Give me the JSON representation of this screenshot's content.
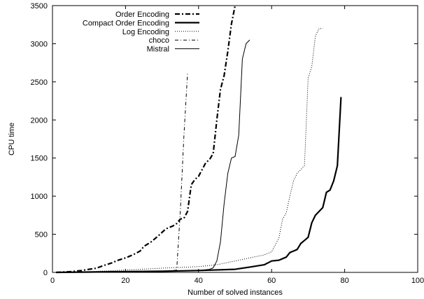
{
  "chart_data": {
    "type": "line",
    "title": "",
    "xlabel": "Number of solved instances",
    "ylabel": "CPU time",
    "xlim": [
      0,
      100
    ],
    "ylim": [
      0,
      3500
    ],
    "xticks": [
      0,
      20,
      40,
      60,
      80,
      100
    ],
    "yticks": [
      0,
      500,
      1000,
      1500,
      2000,
      2500,
      3000,
      3500
    ],
    "xtick_labels": [
      "0",
      "20",
      "40",
      "60",
      "80",
      "100"
    ],
    "ytick_labels": [
      "0",
      "500",
      "1000",
      "1500",
      "2000",
      "2500",
      "3000",
      "3500"
    ],
    "grid": false,
    "legend_position": "top-left",
    "series": [
      {
        "name": "Order Encoding",
        "style": "dash-dot",
        "width": "thick",
        "color": "#000000",
        "x": [
          1,
          5,
          8,
          10,
          12,
          14,
          16,
          18,
          20,
          22,
          24,
          25,
          27,
          29,
          31,
          33,
          34,
          35,
          36,
          37,
          38,
          39,
          40,
          41,
          42,
          43,
          44,
          45,
          46,
          47,
          48,
          49,
          50
        ],
        "y": [
          0,
          10,
          25,
          40,
          55,
          90,
          120,
          160,
          190,
          230,
          280,
          340,
          400,
          480,
          570,
          610,
          640,
          700,
          710,
          800,
          1150,
          1220,
          1260,
          1350,
          1440,
          1480,
          1560,
          2000,
          2400,
          2580,
          2900,
          3260,
          3500
        ]
      },
      {
        "name": "Compact Order Encoding",
        "style": "solid",
        "width": "thick",
        "color": "#000000",
        "x": [
          1,
          10,
          20,
          30,
          40,
          50,
          54,
          58,
          60,
          62,
          64,
          65,
          66,
          67,
          68,
          69,
          70,
          71,
          72,
          73,
          74,
          75,
          76,
          77,
          78,
          79
        ],
        "y": [
          0,
          5,
          10,
          15,
          25,
          40,
          70,
          100,
          150,
          160,
          200,
          260,
          280,
          300,
          380,
          420,
          460,
          650,
          750,
          800,
          850,
          1050,
          1080,
          1200,
          1400,
          2300
        ]
      },
      {
        "name": "Log Encoding",
        "style": "dotted",
        "width": "thin",
        "color": "#000000",
        "x": [
          1,
          10,
          20,
          30,
          40,
          45,
          50,
          55,
          58,
          60,
          62,
          63,
          64,
          65,
          66,
          67,
          68,
          69,
          70,
          71,
          72,
          73,
          74
        ],
        "y": [
          0,
          10,
          30,
          55,
          75,
          100,
          150,
          200,
          230,
          270,
          450,
          700,
          780,
          1000,
          1200,
          1300,
          1350,
          1400,
          2550,
          2700,
          3100,
          3200,
          3200
        ]
      },
      {
        "name": "choco",
        "style": "dash-dot-thin",
        "width": "thin",
        "color": "#000000",
        "x": [
          1,
          10,
          20,
          30,
          34,
          35,
          36,
          37
        ],
        "y": [
          0,
          2,
          5,
          10,
          30,
          800,
          1800,
          2620
        ]
      },
      {
        "name": "Mistral",
        "style": "solid",
        "width": "thin",
        "color": "#000000",
        "x": [
          1,
          10,
          20,
          30,
          40,
          43,
          44,
          45,
          46,
          47,
          48,
          49,
          50,
          51,
          52,
          53,
          54
        ],
        "y": [
          0,
          3,
          8,
          15,
          25,
          40,
          60,
          150,
          400,
          900,
          1300,
          1500,
          1520,
          1800,
          2800,
          3000,
          3050
        ]
      }
    ]
  }
}
